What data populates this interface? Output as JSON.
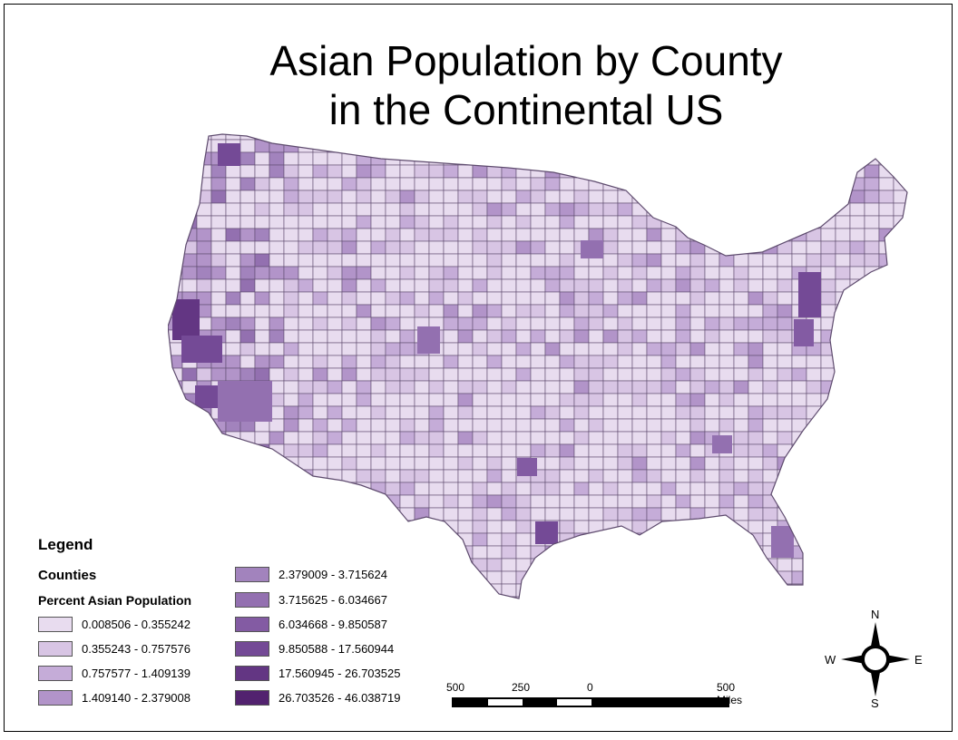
{
  "title": {
    "line1": "Asian Population by County",
    "line2": "in the Continental US"
  },
  "legend": {
    "heading": "Legend",
    "layer": "Counties",
    "field": "Percent Asian Population",
    "classes": [
      {
        "label": "0.008506 - 0.355242",
        "color": "#e8dcef"
      },
      {
        "label": "0.355243 - 0.757576",
        "color": "#d8c5e4"
      },
      {
        "label": "0.757577 - 1.409139",
        "color": "#c5acd8"
      },
      {
        "label": "1.409140 - 2.379008",
        "color": "#b294c9"
      },
      {
        "label": "2.379009 - 3.715624",
        "color": "#a283bd"
      },
      {
        "label": "3.715625 - 6.034667",
        "color": "#9370b0"
      },
      {
        "label": "6.034668 - 9.850587",
        "color": "#835ba3"
      },
      {
        "label": "9.850588 - 17.560944",
        "color": "#744a96"
      },
      {
        "label": "17.560945 - 26.703525",
        "color": "#633683"
      },
      {
        "label": "26.703526 - 46.038719",
        "color": "#52226f"
      }
    ]
  },
  "scalebar": {
    "labels": [
      "500",
      "250",
      "0",
      "500 Miles"
    ]
  },
  "compass": {
    "north": "N",
    "south": "S",
    "east": "E",
    "west": "W"
  },
  "colors": {
    "border": "#5e4b6e",
    "base": "#d7c6e4"
  }
}
